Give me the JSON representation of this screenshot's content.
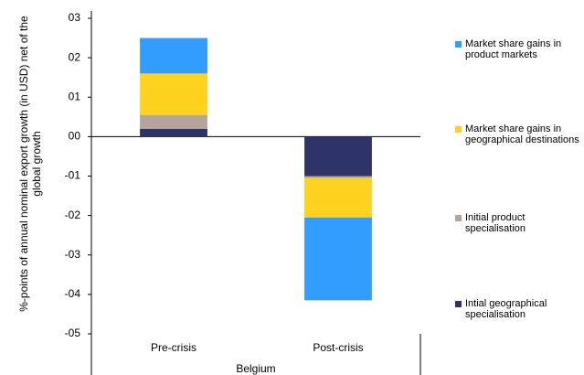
{
  "chart_data": {
    "type": "stacked-bar",
    "y_label": "%-points of annual nominal export growth (in USD) net of the global growth",
    "x_label": "Belgium",
    "categories": [
      "Pre-crisis",
      "Post-crisis"
    ],
    "series": [
      {
        "name": "Intial geographical specialisation",
        "color": "#2e3468",
        "values": [
          0.2,
          -1.0
        ]
      },
      {
        "name": "Initial product specialisation",
        "color": "#b3a49c",
        "values": [
          0.35,
          -0.05
        ]
      },
      {
        "name": "Market share gains in geographical destinations",
        "color": "#ffd21f",
        "values": [
          1.05,
          -1.0
        ]
      },
      {
        "name": "Market share gains in product markets",
        "color": "#339cff",
        "values": [
          0.9,
          -2.1
        ]
      }
    ],
    "ylim": [
      -5,
      3
    ],
    "yticks": [
      {
        "value": -5,
        "label": "-05"
      },
      {
        "value": -4,
        "label": "-04"
      },
      {
        "value": -3,
        "label": "-03"
      },
      {
        "value": -2,
        "label": "-02"
      },
      {
        "value": -1,
        "label": "-01"
      },
      {
        "value": 0,
        "label": "00"
      },
      {
        "value": 1,
        "label": "01"
      },
      {
        "value": 2,
        "label": "02"
      },
      {
        "value": 3,
        "label": "03"
      }
    ],
    "legend": "right"
  }
}
